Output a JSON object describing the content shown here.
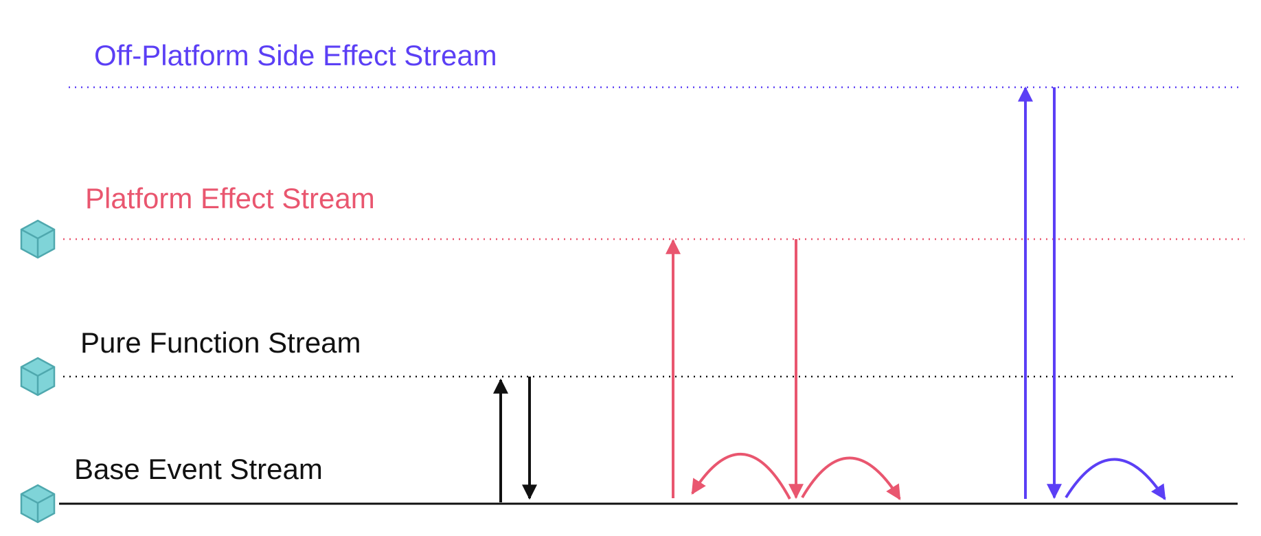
{
  "colors": {
    "off_platform": "#5b3ff5",
    "platform": "#e9566f",
    "pure": "#111111",
    "base": "#111111",
    "cube_face": "#7fd4d8",
    "cube_edge": "#4fa8ae"
  },
  "streams": {
    "off_platform": {
      "label": "Off-Platform Side Effect Stream"
    },
    "platform": {
      "label": "Platform Effect Stream"
    },
    "pure": {
      "label": "Pure Function Stream"
    },
    "base": {
      "label": "Base Event Stream"
    }
  },
  "icons": {
    "level_marker": "cube-icon"
  }
}
